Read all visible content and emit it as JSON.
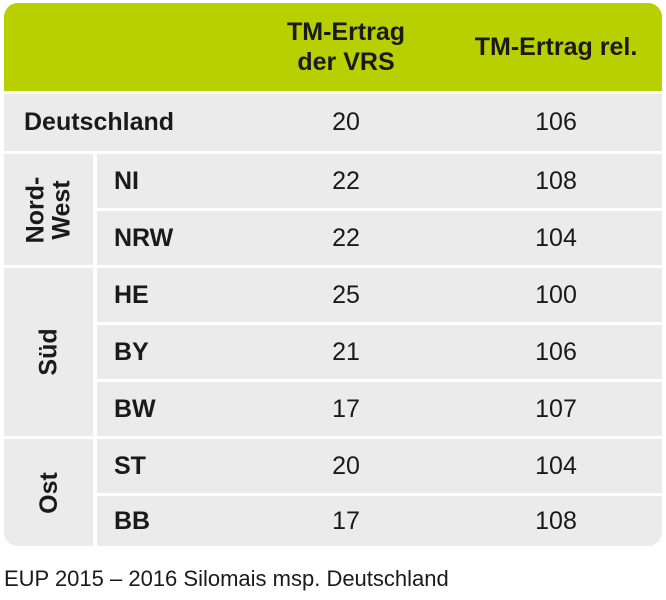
{
  "header": {
    "col1_line1": "TM-Ertrag",
    "col1_line2": "der VRS",
    "col2": "TM-Ertrag rel."
  },
  "rows": {
    "deutschland": {
      "label": "Deutschland",
      "ertrag": "20",
      "rel": "106"
    },
    "ni": {
      "label": "NI",
      "ertrag": "22",
      "rel": "108"
    },
    "nrw": {
      "label": "NRW",
      "ertrag": "22",
      "rel": "104"
    },
    "he": {
      "label": "HE",
      "ertrag": "25",
      "rel": "100"
    },
    "by": {
      "label": "BY",
      "ertrag": "21",
      "rel": "106"
    },
    "bw": {
      "label": "BW",
      "ertrag": "17",
      "rel": "107"
    },
    "st": {
      "label": "ST",
      "ertrag": "20",
      "rel": "104"
    },
    "bb": {
      "label": "BB",
      "ertrag": "17",
      "rel": "108"
    }
  },
  "groups": {
    "nordwest_line1": "Nord-",
    "nordwest_line2": "West",
    "sued": "Süd",
    "ost": "Ost"
  },
  "caption": "EUP 2015 – 2016 Silomais msp. Deutschland",
  "colors": {
    "header_bg": "#b8cf00",
    "row_bg": "#ebebeb"
  }
}
